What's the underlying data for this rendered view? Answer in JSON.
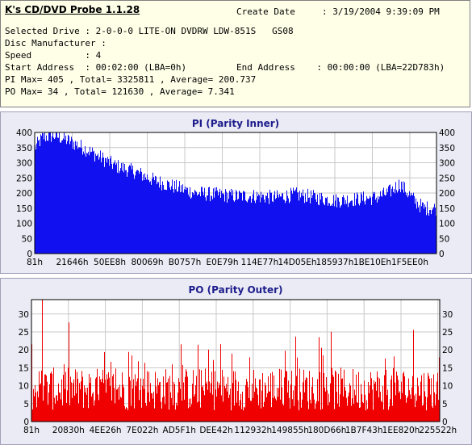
{
  "header": {
    "app_title": "K's CD/DVD Probe 1.1.28",
    "create_date_label": "Create Date",
    "create_date_value": ": 3/19/2004 9:39:09 PM",
    "selected_drive": "Selected Drive : 2-0-0-0 LITE-ON DVDRW LDW-851S   GS08",
    "disc_manufacturer": "Disc Manufacturer :",
    "speed": "Speed          : 4",
    "start_address": "Start Address  : 00:02:00 (LBA=0h)",
    "end_address": "End Address    : 00:00:00 (LBA=22D783h)",
    "pi_summary": "PI Max= 405 , Total= 3325811 , Average= 200.737",
    "po_summary": "PO Max= 34 , Total= 121630 , Average= 7.341"
  },
  "colors": {
    "pi_fill": "#1010f0",
    "po_fill": "#f00000",
    "plot_bg": "#ffffff",
    "grid": "#c8c8c8"
  },
  "chart_data": [
    {
      "type": "area",
      "title": "PI (Parity Inner)",
      "ylim": [
        0,
        400
      ],
      "yticks": [
        0,
        50,
        100,
        150,
        200,
        250,
        300,
        350,
        400
      ],
      "xticks": [
        "81h",
        "21646h",
        "50EE8h",
        "80069h",
        "B0757h",
        "E0E79h",
        "114E77h",
        "14D05Eh",
        "185937h",
        "1BE10Eh",
        "1F5EE0h"
      ],
      "grid": true,
      "profile_x": [
        0,
        0.02,
        0.05,
        0.08,
        0.12,
        0.16,
        0.2,
        0.25,
        0.3,
        0.35,
        0.4,
        0.45,
        0.5,
        0.55,
        0.6,
        0.65,
        0.7,
        0.75,
        0.8,
        0.85,
        0.88,
        0.91,
        0.93,
        0.95,
        0.97,
        1.0
      ],
      "profile_y": [
        350,
        385,
        390,
        375,
        350,
        320,
        290,
        270,
        240,
        220,
        200,
        195,
        190,
        190,
        185,
        195,
        185,
        175,
        180,
        185,
        200,
        230,
        200,
        170,
        150,
        150
      ]
    },
    {
      "type": "bar",
      "title": "PO (Parity Outer)",
      "ylim": [
        0,
        34
      ],
      "yticks": [
        0,
        5,
        10,
        15,
        20,
        25,
        30
      ],
      "xticks": [
        "81h",
        "20830h",
        "4EE26h",
        "7E022h",
        "AD5F1h",
        "DEE42h",
        "112932h",
        "149855h",
        "180D66h",
        "1B7F43h",
        "1EE820h",
        "225522h"
      ],
      "grid": true,
      "baseline": 7.3,
      "max": 34
    }
  ]
}
